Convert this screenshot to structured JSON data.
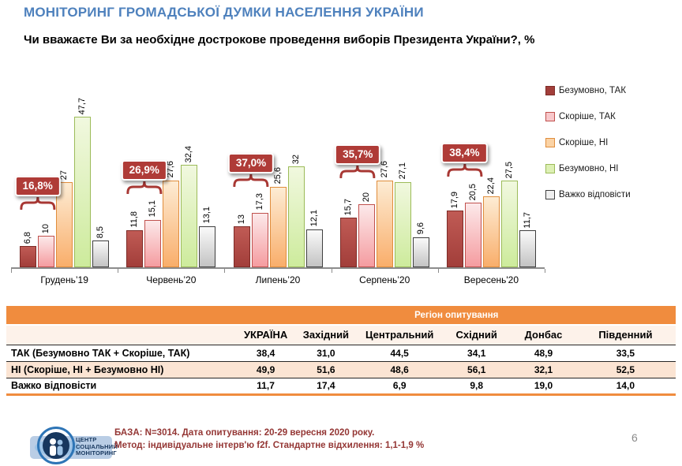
{
  "header": {
    "title": "МОНІТОРИНГ ГРОМАДСЬКОЇ ДУМКИ НАСЕЛЕННЯ УКРАЇНИ",
    "question": "Чи вважаєте Ви за необхідне дострокове проведення виборів Президента  України?, %"
  },
  "chart_data": {
    "type": "bar",
    "title": "Чи вважаєте Ви за необхідне дострокове проведення виборів Президента України?, %",
    "categories": [
      "Грудень’19",
      "Червень’20",
      "Липень’20",
      "Серпень’20",
      "Вересень'20"
    ],
    "series": [
      {
        "name": "Безумовно, ТАК",
        "values": [
          6.8,
          11.8,
          13,
          15.7,
          17.9
        ],
        "fill_top": "#C05B55",
        "fill_bottom": "#A23E3A",
        "border": "#7D2B27",
        "legend_fill": "#A23E3A"
      },
      {
        "name": "Скоріше, ТАК",
        "values": [
          10,
          15.1,
          17.3,
          20,
          20.5
        ],
        "fill_top": "#FCE9EA",
        "fill_bottom": "#F59CA0",
        "border": "#C0504D",
        "legend_fill": "#F8C8CB"
      },
      {
        "name": "Скоріше, НІ",
        "values": [
          27,
          27.6,
          25.6,
          27.6,
          22.4
        ],
        "fill_top": "#FDECD4",
        "fill_bottom": "#F9AE6B",
        "border": "#E08D3C",
        "legend_fill": "#FBD3A5"
      },
      {
        "name": "Безумовно, НІ",
        "values": [
          47.7,
          32.4,
          32,
          27.1,
          27.5
        ],
        "fill_top": "#F1F8DF",
        "fill_bottom": "#CDEB9C",
        "border": "#9CBB59",
        "legend_fill": "#DDF0B4"
      },
      {
        "name": "Важко відповісти",
        "values": [
          8.5,
          13.1,
          12.1,
          9.6,
          11.7
        ],
        "fill_top": "#FAFAFA",
        "fill_bottom": "#C3C3C3",
        "border": "#3F3F3F",
        "legend_fill": "#EFEFEF"
      }
    ],
    "callouts": {
      "labels": [
        "16,8%",
        "26,9%",
        "37,0%",
        "35,7%",
        "38,4%"
      ]
    },
    "ylim": [
      0,
      50
    ],
    "grid": false,
    "legend_position": "right",
    "value_labels_rotated": true
  },
  "table": {
    "region_header": "Регіон опитування",
    "columns": [
      "УКРАЇНА",
      "Західний",
      "Центральний",
      "Східний",
      "Донбас",
      "Південний"
    ],
    "rows": [
      {
        "label": "ТАК (Безумовно ТАК + Скоріше, ТАК)",
        "values": [
          "38,4",
          "31,0",
          "44,5",
          "34,1",
          "48,9",
          "33,5"
        ],
        "alt": false
      },
      {
        "label": "НІ (Скоріше, НІ + Безумовно НІ)",
        "values": [
          "49,9",
          "51,6",
          "48,6",
          "56,1",
          "32,1",
          "52,5"
        ],
        "alt": true
      },
      {
        "label": "Важко відповісти",
        "values": [
          "11,7",
          "17,4",
          "6,9",
          "9,8",
          "19,0",
          "14,0"
        ],
        "alt": false
      }
    ]
  },
  "footer": {
    "logo_lines": [
      "ЦЕНТР",
      "СОЦІАЛЬНИЙ",
      "МОНІТОРИНГ"
    ],
    "base_line1": "БАЗА: N=3014. Дата опитування: 20-29 вересня 2020 року.",
    "base_line2": "Метод: індивідуальне інтерв'ю f2f. Стандартне відхилення: 1,1-1,9 %",
    "page_number": "6"
  },
  "colors": {
    "title_blue": "#4E81BD",
    "callout_red": "#AF3B37",
    "brace_red": "#A83834",
    "table_header_orange": "#F08C3E",
    "table_alt_row": "#FBE4D3",
    "table_subheader_bg": "#FDF2EA",
    "footer_maroon": "#943634",
    "axis_gray": "#8C8C8C",
    "logo_navy": "#17375E",
    "logo_blue": "#2E75B6"
  }
}
